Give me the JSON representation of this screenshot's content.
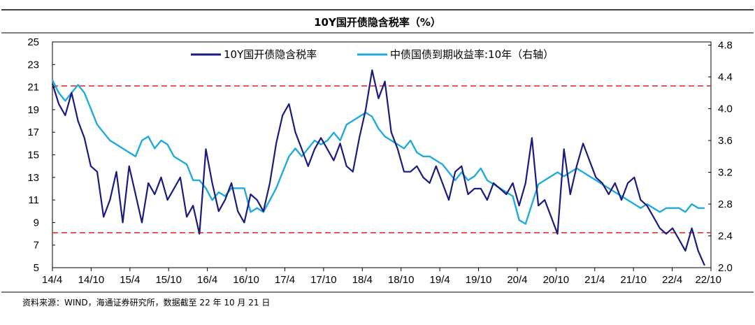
{
  "chart_data": {
    "type": "line",
    "title": "10Y国开债隐含税率（%）",
    "source": "资料来源：WIND，海通证券研究所，数据截至 22 年 10 月 21 日",
    "x_ticks": [
      "14/4",
      "14/10",
      "15/4",
      "15/10",
      "16/4",
      "16/10",
      "17/4",
      "17/10",
      "18/4",
      "18/10",
      "19/4",
      "19/10",
      "20/4",
      "20/10",
      "21/4",
      "21/10",
      "22/4",
      "22/10"
    ],
    "x_range": [
      0,
      103
    ],
    "left_axis": {
      "ticks": [
        "25",
        "23",
        "21",
        "19",
        "17",
        "15",
        "13",
        "11",
        "9",
        "7",
        "5"
      ],
      "ylim": [
        5,
        25
      ]
    },
    "right_axis": {
      "ticks": [
        "4.8",
        "4.4",
        "4.0",
        "3.6",
        "3.2",
        "2.8",
        "2.4",
        "2.0"
      ],
      "ylim": [
        2.0,
        4.84
      ]
    },
    "reference_lines": [
      {
        "value": 21.1,
        "axis": "left",
        "color": "#e03030"
      },
      {
        "value": 8.1,
        "axis": "left",
        "color": "#e03030"
      }
    ],
    "series": [
      {
        "name": "10Y国开债隐含税率",
        "axis": "left",
        "color": "#1a1a80",
        "x": [
          0,
          1,
          2,
          3,
          4,
          5,
          6,
          7,
          8,
          9,
          10,
          11,
          12,
          13,
          14,
          15,
          16,
          17,
          18,
          19,
          20,
          21,
          22,
          23,
          24,
          25,
          26,
          27,
          28,
          29,
          30,
          31,
          32,
          33,
          34,
          35,
          36,
          37,
          38,
          39,
          40,
          41,
          42,
          43,
          44,
          45,
          46,
          47,
          48,
          49,
          50,
          51,
          52,
          53,
          54,
          55,
          56,
          57,
          58,
          59,
          60,
          61,
          62,
          63,
          64,
          65,
          66,
          67,
          68,
          69,
          70,
          71,
          72,
          73,
          74,
          75,
          76,
          77,
          78,
          79,
          80,
          81,
          82,
          83,
          84,
          85,
          86,
          87,
          88,
          89,
          90,
          91,
          92,
          93,
          94,
          95,
          96,
          97,
          98,
          99,
          100,
          101,
          102
        ],
        "values": [
          21.3,
          19.5,
          18.5,
          20.5,
          18.0,
          16.5,
          14.0,
          13.5,
          9.5,
          11.0,
          13.5,
          9.0,
          14.0,
          11.5,
          9.0,
          12.5,
          11.5,
          13.0,
          11.0,
          12.0,
          13.0,
          9.5,
          10.5,
          8.0,
          15.5,
          12.5,
          10.0,
          11.0,
          12.5,
          10.0,
          9.0,
          11.5,
          11.0,
          10.0,
          12.5,
          16.0,
          18.5,
          19.5,
          17.0,
          15.5,
          14.0,
          15.5,
          16.5,
          15.5,
          14.5,
          16.0,
          14.0,
          13.5,
          16.5,
          19.0,
          22.5,
          20.0,
          21.5,
          17.0,
          15.5,
          13.5,
          13.5,
          14.0,
          13.0,
          12.5,
          14.0,
          12.5,
          11.0,
          13.5,
          14.0,
          11.5,
          12.0,
          12.0,
          11.0,
          12.5,
          12.0,
          11.5,
          12.5,
          10.5,
          12.5,
          16.5,
          10.5,
          11.0,
          9.5,
          8.0,
          15.5,
          11.5,
          14.0,
          16.0,
          14.5,
          13.0,
          12.5,
          11.5,
          12.5,
          11.0,
          12.5,
          13.0,
          11.0,
          10.5,
          9.5,
          8.5,
          8.0,
          8.5,
          7.5,
          6.5,
          8.5,
          6.5,
          5.2
        ]
      },
      {
        "name": "中债国债到期收益率:10年（右轴）",
        "axis": "right",
        "color": "#22aadd",
        "x": [
          0,
          1,
          2,
          3,
          4,
          5,
          6,
          7,
          8,
          9,
          10,
          11,
          12,
          13,
          14,
          15,
          16,
          17,
          18,
          19,
          20,
          21,
          22,
          23,
          24,
          25,
          26,
          27,
          28,
          29,
          30,
          31,
          32,
          33,
          34,
          35,
          36,
          37,
          38,
          39,
          40,
          41,
          42,
          43,
          44,
          45,
          46,
          47,
          48,
          49,
          50,
          51,
          52,
          53,
          54,
          55,
          56,
          57,
          58,
          59,
          60,
          61,
          62,
          63,
          64,
          65,
          66,
          67,
          68,
          69,
          70,
          71,
          72,
          73,
          74,
          75,
          76,
          77,
          78,
          79,
          80,
          81,
          82,
          83,
          84,
          85,
          86,
          87,
          88,
          89,
          90,
          91,
          92,
          93,
          94,
          95,
          96,
          97,
          98,
          99,
          100,
          101,
          102
        ],
        "values": [
          4.36,
          4.2,
          4.1,
          4.2,
          4.3,
          4.2,
          4.0,
          3.8,
          3.7,
          3.6,
          3.55,
          3.5,
          3.45,
          3.4,
          3.6,
          3.65,
          3.5,
          3.6,
          3.55,
          3.4,
          3.35,
          3.3,
          3.1,
          3.1,
          3.0,
          2.85,
          2.95,
          2.9,
          3.0,
          3.0,
          3.0,
          2.7,
          2.75,
          2.7,
          2.85,
          3.0,
          3.2,
          3.4,
          3.5,
          3.4,
          3.5,
          3.6,
          3.55,
          3.6,
          3.7,
          3.6,
          3.8,
          3.85,
          3.9,
          3.95,
          3.9,
          3.75,
          3.65,
          3.6,
          3.55,
          3.5,
          3.6,
          3.45,
          3.4,
          3.4,
          3.35,
          3.3,
          3.2,
          3.1,
          3.2,
          3.1,
          3.15,
          3.25,
          3.1,
          3.05,
          3.0,
          2.95,
          2.9,
          2.6,
          2.55,
          2.8,
          3.05,
          3.1,
          3.15,
          3.2,
          3.15,
          3.2,
          3.25,
          3.2,
          3.15,
          3.1,
          3.05,
          3.0,
          2.95,
          2.9,
          2.85,
          2.8,
          2.75,
          2.8,
          2.75,
          2.7,
          2.75,
          2.75,
          2.75,
          2.7,
          2.8,
          2.75,
          2.75
        ]
      }
    ]
  }
}
